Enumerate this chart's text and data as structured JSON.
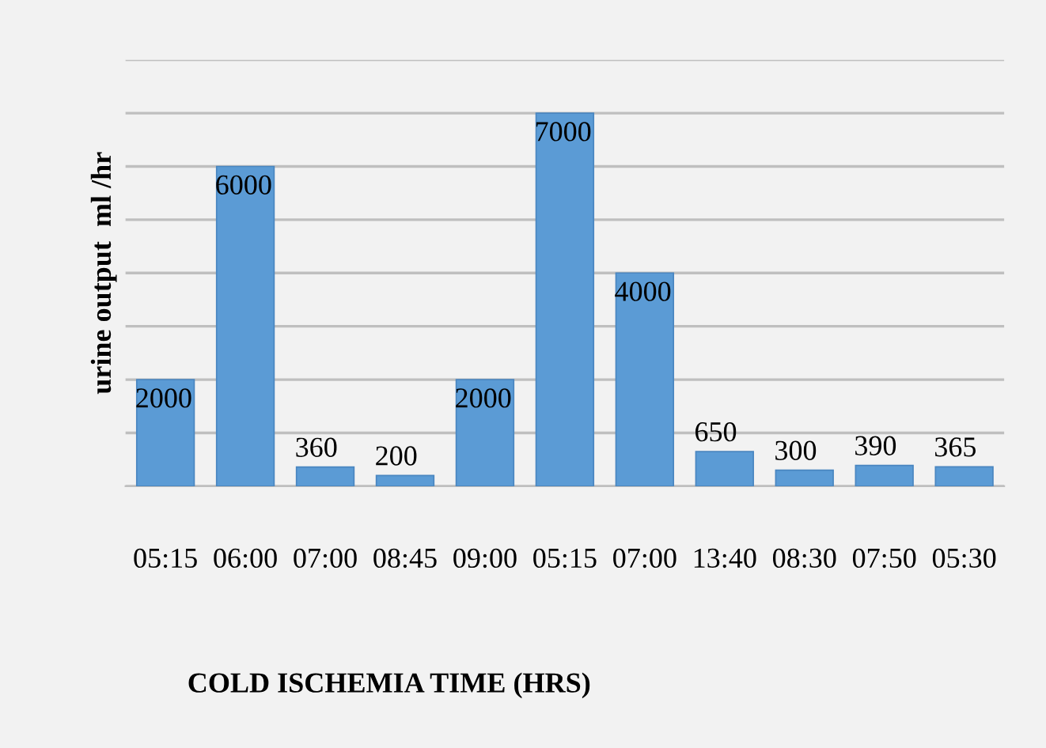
{
  "chart_data": {
    "type": "bar",
    "xlabel": "COLD ISCHEMIA TIME (HRS)",
    "ylabel": "urine output  ml /hr",
    "categories": [
      "05:15",
      "06:00",
      "07:00",
      "08:45",
      "09:00",
      "05:15",
      "07:00",
      "13:40",
      "08:30",
      "07:50",
      "05:30"
    ],
    "values": [
      2000,
      6000,
      360,
      200,
      2000,
      7000,
      4000,
      650,
      300,
      390,
      365
    ],
    "color": "#5b9bd5",
    "data_labels": true,
    "ylim": [
      0,
      8000
    ],
    "yticks": [
      {
        "value": 0,
        "label": null
      },
      {
        "value": 1000,
        "label": null
      },
      {
        "value": 2000,
        "label": null
      },
      {
        "value": 3000,
        "label": null
      },
      {
        "value": 4000,
        "label": null
      },
      {
        "value": 5000,
        "label": null
      },
      {
        "value": 6000,
        "label": null
      },
      {
        "value": 7000,
        "label": null
      },
      {
        "value": 8000,
        "label": null
      }
    ],
    "grid": "y",
    "tick_labels": "x"
  }
}
